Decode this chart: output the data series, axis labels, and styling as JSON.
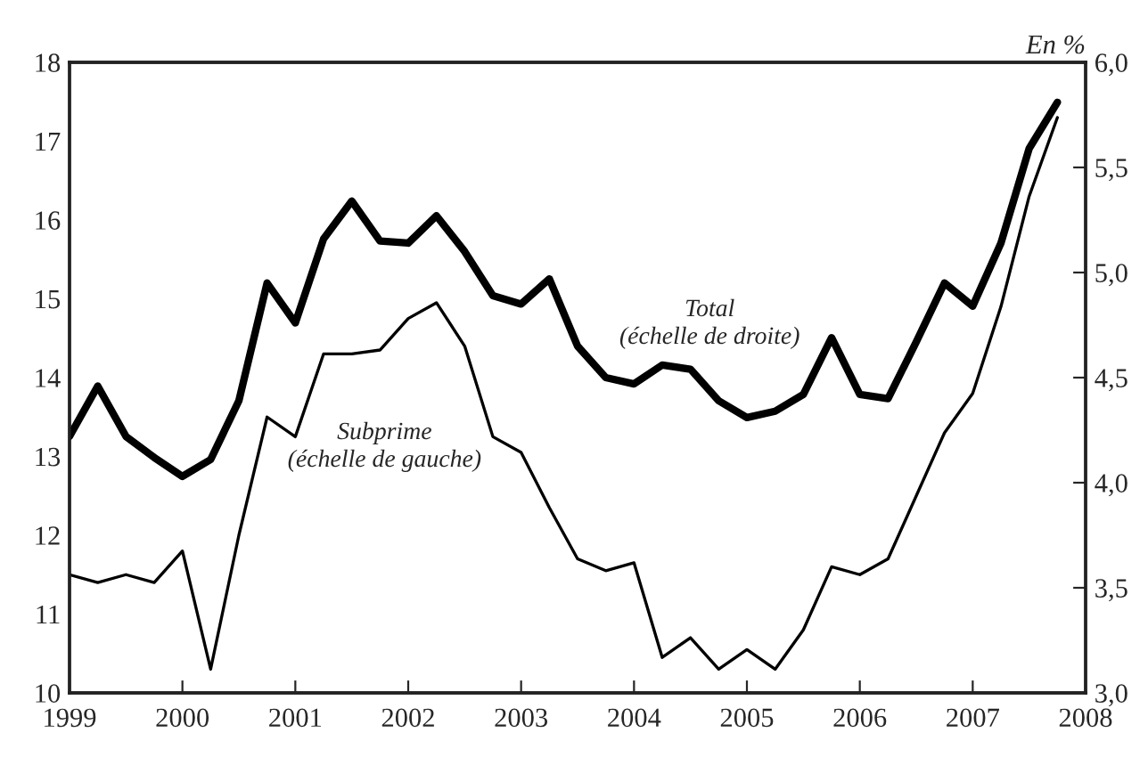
{
  "chart_data": {
    "type": "line",
    "x": [
      1999.0,
      1999.25,
      1999.5,
      1999.75,
      2000.0,
      2000.25,
      2000.5,
      2000.75,
      2001.0,
      2001.25,
      2001.5,
      2001.75,
      2002.0,
      2002.25,
      2002.5,
      2002.75,
      2003.0,
      2003.25,
      2003.5,
      2003.75,
      2004.0,
      2004.25,
      2004.5,
      2004.75,
      2005.0,
      2005.25,
      2005.5,
      2005.75,
      2006.0,
      2006.25,
      2006.5,
      2006.75,
      2007.0,
      2007.25,
      2007.5,
      2007.75
    ],
    "series": [
      {
        "color": "#000000",
        "values": [
          11.5,
          11.4,
          11.5,
          11.4,
          11.8,
          10.3,
          12.0,
          13.5,
          13.25,
          14.3,
          14.3,
          14.35,
          14.75,
          14.95,
          14.4,
          13.25,
          13.05,
          12.35,
          11.7,
          11.55,
          11.65,
          10.45,
          10.7,
          10.3,
          10.55,
          10.3,
          10.8,
          11.6,
          11.5,
          11.7,
          12.5,
          13.3,
          13.8,
          14.9,
          16.3,
          17.3
        ]
      },
      {
        "color": "#000000",
        "axis": "y2",
        "values": [
          4.22,
          4.46,
          4.22,
          4.12,
          4.03,
          4.11,
          4.39,
          4.95,
          4.76,
          5.16,
          5.34,
          5.15,
          5.14,
          5.27,
          5.1,
          4.89,
          4.85,
          4.97,
          4.65,
          4.5,
          4.47,
          4.56,
          4.54,
          4.39,
          4.31,
          4.34,
          4.42,
          4.69,
          4.42,
          4.4,
          4.67,
          4.95,
          4.84,
          5.14,
          5.59,
          5.81
        ]
      }
    ],
    "xlim": [
      1999,
      2008
    ],
    "xticks": [
      1999,
      2000,
      2001,
      2002,
      2003,
      2004,
      2005,
      2006,
      2007,
      2008
    ],
    "ylim": [
      10,
      18
    ],
    "yticks": [
      10,
      11,
      12,
      13,
      14,
      15,
      16,
      17,
      18
    ],
    "y2lim": [
      3.0,
      6.0
    ],
    "y2ticks": [
      {
        "value": 3.0,
        "label": "3,0"
      },
      {
        "value": 3.5,
        "label": "3,5"
      },
      {
        "value": 4.0,
        "label": "4,0"
      },
      {
        "value": 4.5,
        "label": "4,5"
      },
      {
        "value": 5.0,
        "label": "5,0"
      },
      {
        "value": 5.5,
        "label": "5,5"
      },
      {
        "value": 6.0,
        "label": "6,0"
      }
    ],
    "y2label": "En %",
    "annotations": [
      "Subprime\n(échelle de gauche)",
      "Total\n(échelle de droite)"
    ],
    "grid": false,
    "legend": false,
    "marker": "none",
    "line_style": "solid"
  }
}
